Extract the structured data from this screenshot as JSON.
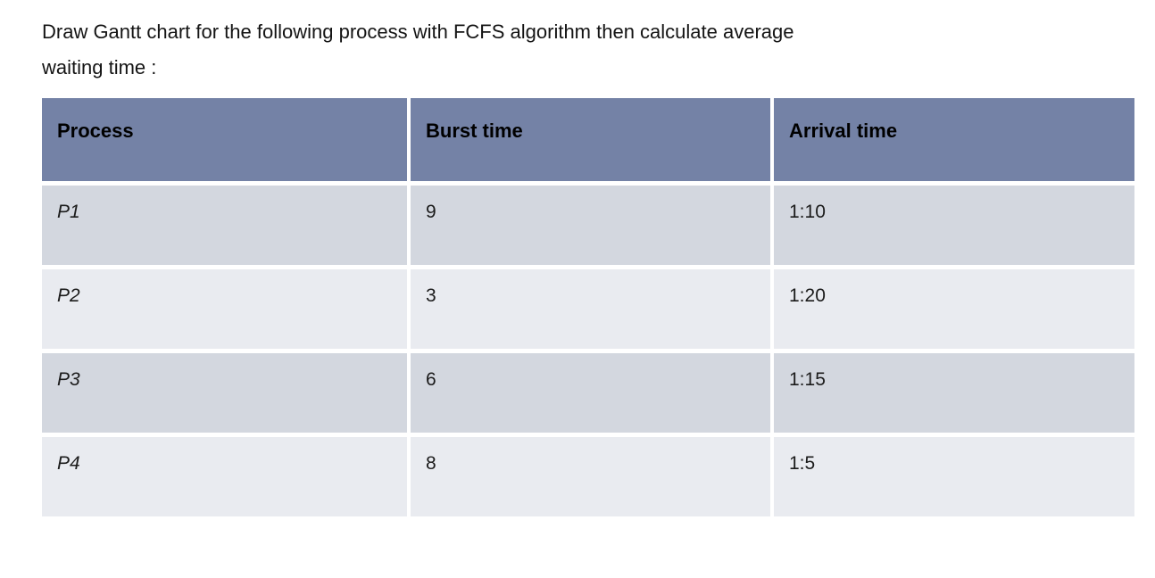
{
  "document": {
    "question_lines": [
      "Draw Gantt chart for the following process with FCFS algorithm then calculate average",
      "waiting time :"
    ]
  },
  "table": {
    "headers": [
      "Process",
      "Burst time",
      "Arrival time"
    ],
    "rows": [
      {
        "process": "P1",
        "burst_time": "9",
        "arrival_time": "1:10"
      },
      {
        "process": "P2",
        "burst_time": "3",
        "arrival_time": "1:20"
      },
      {
        "process": "P3",
        "burst_time": "6",
        "arrival_time": "1:15"
      },
      {
        "process": "P4",
        "burst_time": "8",
        "arrival_time": "1:5"
      }
    ]
  },
  "colors": {
    "header_bg": "#7482A6",
    "row_odd_bg": "#D3D7DF",
    "row_even_bg": "#E9EBF0",
    "text": "#1B1B1B"
  }
}
